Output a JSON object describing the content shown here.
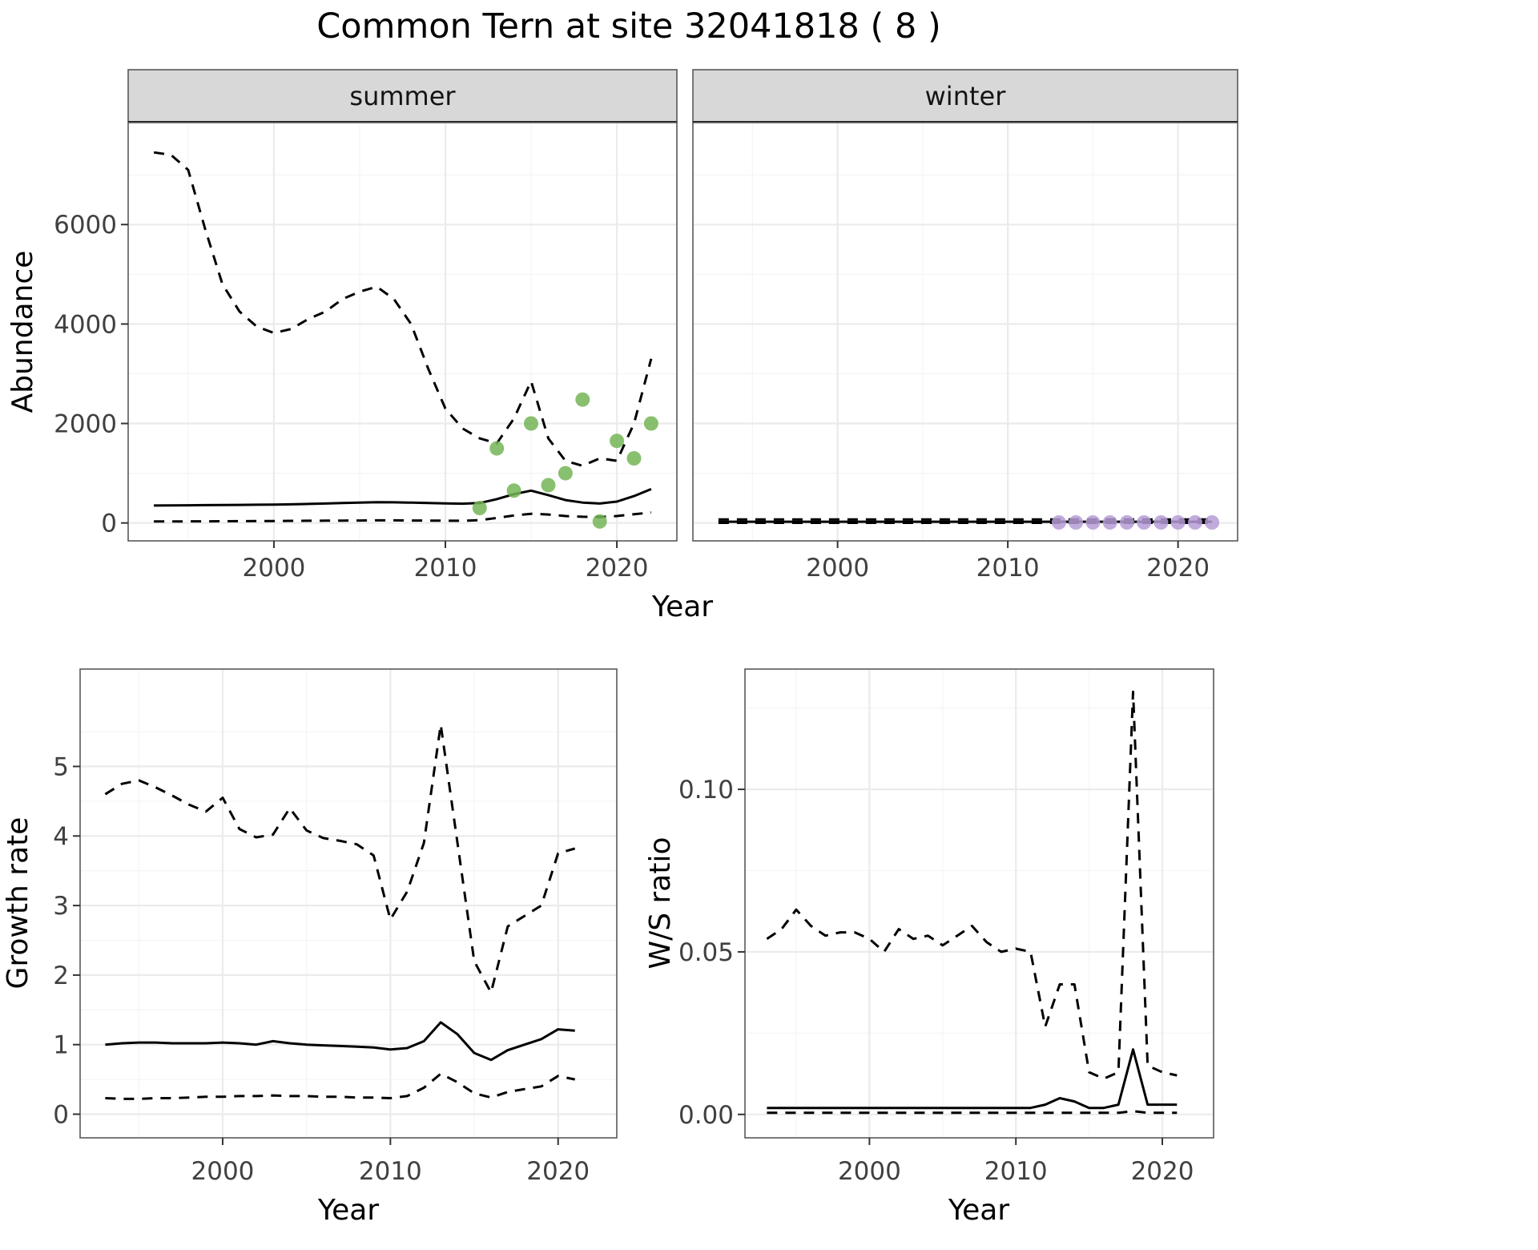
{
  "title": "Common Tern at site 32041818 ( 8 )",
  "theme": {
    "strip_bg": "#d8d8d8",
    "strip_text": "#141414",
    "strip_border": "#1a1a1a",
    "panel_border": "#595959",
    "grid_major": "#ebebeb",
    "grid_minor": "#f5f5f5",
    "line_color": "#000000",
    "tick_mark": "#333333",
    "tick_label_color": "#404040",
    "axis_title_color": "#000000",
    "summer_point_color": "#74b556",
    "winter_point_color": "#b69cd6"
  },
  "chart_data": [
    {
      "id": "abundance",
      "type": "line+scatter",
      "xlabel": "Year",
      "ylabel": "Abundance",
      "xlim": [
        1991.5,
        2023.5
      ],
      "ylim": [
        -360,
        8050
      ],
      "xticks": [
        2000,
        2010,
        2020
      ],
      "xtick_labels": [
        "2000",
        "2010",
        "2020"
      ],
      "xminor": [
        1995,
        2005,
        2015
      ],
      "yticks": [
        0,
        2000,
        4000,
        6000
      ],
      "ytick_labels": [
        "0",
        "2000",
        "4000",
        "6000"
      ],
      "yminor": [
        1000,
        3000,
        5000,
        7000
      ],
      "grid": true,
      "legend": "none",
      "facets": [
        {
          "label": "summer",
          "years": [
            1993,
            1994,
            1995,
            1996,
            1997,
            1998,
            1999,
            2000,
            2001,
            2002,
            2003,
            2004,
            2005,
            2006,
            2007,
            2008,
            2009,
            2010,
            2011,
            2012,
            2013,
            2014,
            2015,
            2016,
            2017,
            2018,
            2019,
            2020,
            2021,
            2022
          ],
          "series": [
            {
              "name": "upper_ci",
              "style": "dashed",
              "values": [
                7450,
                7400,
                7100,
                5900,
                4800,
                4250,
                3950,
                3820,
                3900,
                4100,
                4250,
                4500,
                4650,
                4750,
                4500,
                4000,
                3100,
                2300,
                1900,
                1700,
                1600,
                2100,
                2850,
                1700,
                1250,
                1150,
                1300,
                1250,
                2000,
                3300
              ]
            },
            {
              "name": "median",
              "style": "solid",
              "values": [
                350,
                352,
                355,
                358,
                360,
                363,
                366,
                370,
                375,
                382,
                390,
                400,
                410,
                418,
                415,
                408,
                400,
                392,
                388,
                400,
                480,
                580,
                650,
                560,
                460,
                410,
                390,
                430,
                540,
                680
              ]
            },
            {
              "name": "lower_ci",
              "style": "dashed",
              "values": [
                30,
                30,
                32,
                33,
                35,
                36,
                38,
                40,
                42,
                44,
                46,
                48,
                50,
                52,
                52,
                50,
                48,
                46,
                45,
                55,
                100,
                150,
                185,
                170,
                140,
                125,
                120,
                140,
                175,
                210
              ]
            }
          ],
          "points": {
            "name": "observed-summer",
            "years": [
              2012,
              2013,
              2014,
              2015,
              2016,
              2017,
              2018,
              2019,
              2020,
              2021,
              2022
            ],
            "values": [
              300,
              1500,
              650,
              2000,
              760,
              1000,
              2480,
              30,
              1650,
              1300,
              2000
            ]
          }
        },
        {
          "label": "winter",
          "years": [
            1993,
            1994,
            1995,
            1996,
            1997,
            1998,
            1999,
            2000,
            2001,
            2002,
            2003,
            2004,
            2005,
            2006,
            2007,
            2008,
            2009,
            2010,
            2011,
            2012,
            2013,
            2014,
            2015,
            2016,
            2017,
            2018,
            2019,
            2020,
            2021,
            2022
          ],
          "series": [
            {
              "name": "upper_ci",
              "style": "dashed",
              "values": [
                70,
                70,
                70,
                70,
                70,
                70,
                70,
                70,
                70,
                70,
                70,
                70,
                70,
                70,
                70,
                70,
                70,
                70,
                70,
                70,
                70,
                70,
                70,
                70,
                70,
                70,
                70,
                70,
                70,
                70
              ]
            },
            {
              "name": "median",
              "style": "solid",
              "values": [
                25,
                25,
                25,
                25,
                25,
                25,
                25,
                25,
                25,
                25,
                25,
                25,
                25,
                25,
                25,
                25,
                25,
                25,
                25,
                25,
                25,
                25,
                25,
                25,
                25,
                25,
                25,
                25,
                25,
                25
              ]
            },
            {
              "name": "lower_ci",
              "style": "dashed",
              "values": [
                3,
                3,
                3,
                3,
                3,
                3,
                3,
                3,
                3,
                3,
                3,
                3,
                3,
                3,
                3,
                3,
                3,
                3,
                3,
                3,
                3,
                3,
                3,
                3,
                3,
                3,
                3,
                3,
                3,
                3
              ]
            }
          ],
          "points": {
            "name": "observed-winter",
            "years": [
              2013,
              2014,
              2015,
              2016,
              2017,
              2018,
              2019,
              2020,
              2021,
              2022
            ],
            "values": [
              10,
              10,
              10,
              10,
              10,
              10,
              10,
              10,
              10,
              10
            ]
          }
        }
      ]
    },
    {
      "id": "growth_rate",
      "type": "line",
      "xlabel": "Year",
      "ylabel": "Growth rate",
      "xlim": [
        1991.5,
        2023.5
      ],
      "ylim": [
        -0.34,
        6.4
      ],
      "xticks": [
        2000,
        2010,
        2020
      ],
      "xtick_labels": [
        "2000",
        "2010",
        "2020"
      ],
      "xminor": [
        1995,
        2005,
        2015
      ],
      "yticks": [
        0,
        1,
        2,
        3,
        4,
        5
      ],
      "ytick_labels": [
        "0",
        "1",
        "2",
        "3",
        "4",
        "5"
      ],
      "yminor": [
        0.5,
        1.5,
        2.5,
        3.5,
        4.5,
        5.5
      ],
      "grid": true,
      "legend": "none",
      "years": [
        1993,
        1994,
        1995,
        1996,
        1997,
        1998,
        1999,
        2000,
        2001,
        2002,
        2003,
        2004,
        2005,
        2006,
        2007,
        2008,
        2009,
        2010,
        2011,
        2012,
        2013,
        2014,
        2015,
        2016,
        2017,
        2018,
        2019,
        2020,
        2021
      ],
      "series": [
        {
          "name": "upper_ci",
          "style": "dashed",
          "values": [
            4.6,
            4.75,
            4.8,
            4.7,
            4.58,
            4.45,
            4.35,
            4.55,
            4.1,
            3.98,
            4.02,
            4.4,
            4.08,
            3.97,
            3.93,
            3.88,
            3.72,
            2.8,
            3.2,
            3.9,
            5.6,
            3.9,
            2.2,
            1.75,
            2.7,
            2.85,
            3.0,
            3.75,
            3.82
          ]
        },
        {
          "name": "median",
          "style": "solid",
          "values": [
            1.0,
            1.02,
            1.03,
            1.03,
            1.02,
            1.02,
            1.02,
            1.03,
            1.02,
            1.0,
            1.05,
            1.02,
            1.0,
            0.99,
            0.98,
            0.97,
            0.96,
            0.93,
            0.95,
            1.05,
            1.32,
            1.15,
            0.88,
            0.78,
            0.92,
            1.0,
            1.08,
            1.22,
            1.2
          ]
        },
        {
          "name": "lower_ci",
          "style": "dashed",
          "values": [
            0.23,
            0.22,
            0.22,
            0.23,
            0.23,
            0.24,
            0.25,
            0.25,
            0.26,
            0.26,
            0.27,
            0.26,
            0.26,
            0.25,
            0.25,
            0.24,
            0.24,
            0.23,
            0.26,
            0.38,
            0.58,
            0.46,
            0.3,
            0.24,
            0.32,
            0.36,
            0.4,
            0.55,
            0.5
          ]
        }
      ]
    },
    {
      "id": "ws_ratio",
      "type": "line",
      "xlabel": "Year",
      "ylabel": "W/S ratio",
      "xlim": [
        1991.5,
        2023.5
      ],
      "ylim": [
        -0.0072,
        0.137
      ],
      "xticks": [
        2000,
        2010,
        2020
      ],
      "xtick_labels": [
        "2000",
        "2010",
        "2020"
      ],
      "xminor": [
        1995,
        2005,
        2015
      ],
      "yticks": [
        0,
        0.05,
        0.1
      ],
      "ytick_labels": [
        "0.00",
        "0.05",
        "0.10"
      ],
      "yminor": [
        0.025,
        0.075,
        0.125
      ],
      "grid": true,
      "legend": "none",
      "years": [
        1993,
        1994,
        1995,
        1996,
        1997,
        1998,
        1999,
        2000,
        2001,
        2002,
        2003,
        2004,
        2005,
        2006,
        2007,
        2008,
        2009,
        2010,
        2011,
        2012,
        2013,
        2014,
        2015,
        2016,
        2017,
        2018,
        2019,
        2020,
        2021
      ],
      "series": [
        {
          "name": "upper_ci",
          "style": "dashed",
          "values": [
            0.054,
            0.057,
            0.063,
            0.058,
            0.055,
            0.056,
            0.056,
            0.054,
            0.05,
            0.057,
            0.054,
            0.055,
            0.052,
            0.055,
            0.058,
            0.053,
            0.05,
            0.051,
            0.05,
            0.027,
            0.04,
            0.04,
            0.013,
            0.011,
            0.013,
            0.13,
            0.015,
            0.013,
            0.012
          ]
        },
        {
          "name": "median",
          "style": "solid",
          "values": [
            0.002,
            0.002,
            0.002,
            0.002,
            0.002,
            0.002,
            0.002,
            0.002,
            0.002,
            0.002,
            0.002,
            0.002,
            0.002,
            0.002,
            0.002,
            0.002,
            0.002,
            0.002,
            0.002,
            0.003,
            0.005,
            0.004,
            0.002,
            0.002,
            0.003,
            0.02,
            0.003,
            0.003,
            0.003
          ]
        },
        {
          "name": "lower_ci",
          "style": "dashed",
          "values": [
            0.0005,
            0.0005,
            0.0005,
            0.0005,
            0.0005,
            0.0005,
            0.0005,
            0.0005,
            0.0005,
            0.0005,
            0.0005,
            0.0005,
            0.0005,
            0.0005,
            0.0005,
            0.0005,
            0.0005,
            0.0005,
            0.0005,
            0.0005,
            0.0005,
            0.0005,
            0.0005,
            0.0005,
            0.0005,
            0.001,
            0.0005,
            0.0005,
            0.0005
          ]
        }
      ]
    }
  ]
}
